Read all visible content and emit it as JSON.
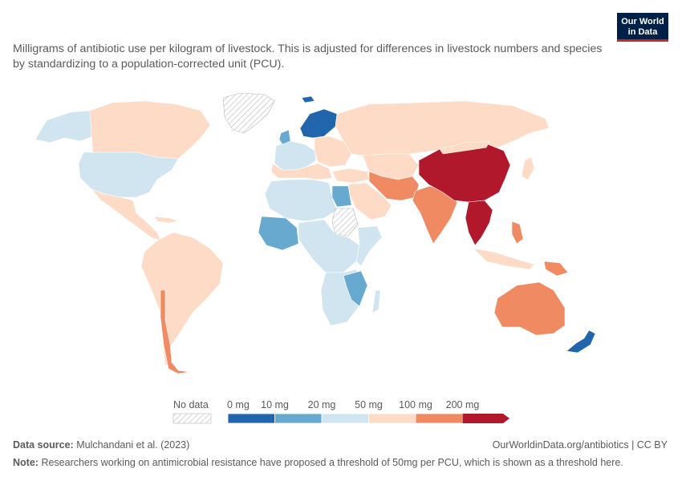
{
  "subtitle": "Milligrams of antibiotic use per kilogram of livestock. This is adjusted for differences in livestock numbers and species by standardizing to a population-corrected unit (PCU).",
  "logo": {
    "line1": "Our World",
    "line2": "in Data"
  },
  "legend": {
    "no_data_label": "No data",
    "bins": [
      {
        "label": "0 mg",
        "color": "#2166ac"
      },
      {
        "label": "10 mg",
        "color": "#67a9cf"
      },
      {
        "label": "20 mg",
        "color": "#d1e5f0"
      },
      {
        "label": "50 mg",
        "color": "#fddbc7"
      },
      {
        "label": "100 mg",
        "color": "#ef8a62"
      },
      {
        "label": "200 mg",
        "color": "#b2182b"
      }
    ]
  },
  "footer": {
    "source_label": "Data source:",
    "source_value": "Mulchandani et al. (2023)",
    "credit": "OurWorldinData.org/antibiotics | CC BY",
    "note_label": "Note:",
    "note_value": "Researchers working on antimicrobial resistance have proposed a threshold of 50mg per PCU, which is shown as a threshold here."
  },
  "colors": {
    "very_low": "#2166ac",
    "low": "#67a9cf",
    "mid_low": "#d1e5f0",
    "mid_high": "#fddbc7",
    "high": "#ef8a62",
    "very_high": "#b2182b",
    "no_data": "#e8e8e8"
  }
}
